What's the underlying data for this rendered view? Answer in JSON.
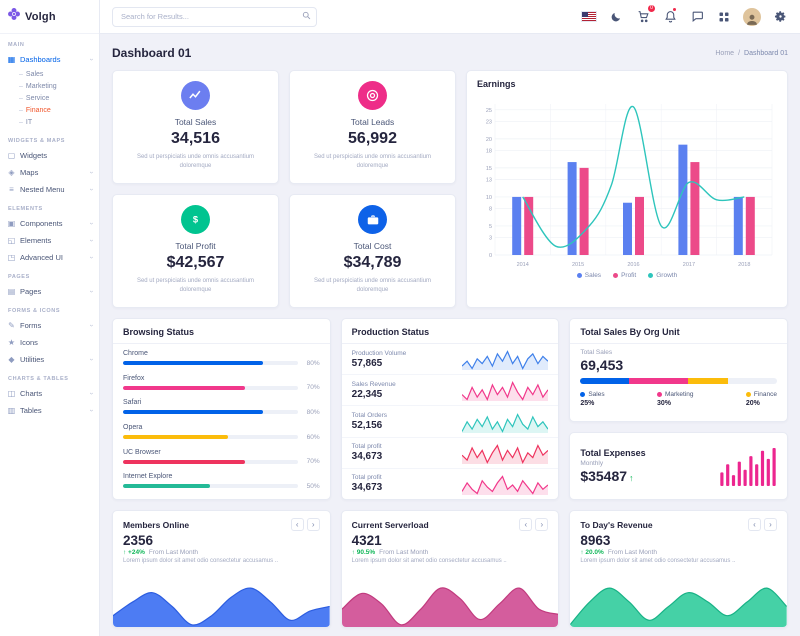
{
  "brand": {
    "name": "Volgh"
  },
  "header": {
    "search": {
      "placeholder": "Search for Results..."
    },
    "cart_badge": "0",
    "icons": [
      "us-flag-icon",
      "moon-icon",
      "cart-icon",
      "bell-icon",
      "chat-icon",
      "grid-icon",
      "avatar",
      "gear-icon"
    ]
  },
  "icon_glyphs": {
    "dashboard-icon": "▦",
    "widgets-icon": "▢",
    "maps-icon": "◈",
    "nested-menu-icon": "≡",
    "components-icon": "▣",
    "elements-icon": "◱",
    "advanced-ui-icon": "◳",
    "pages-icon": "▤",
    "forms-icon": "✎",
    "icons-icon": "★",
    "utilities-icon": "◆",
    "charts-icon": "◫",
    "tables-icon": "▥"
  },
  "sidebar": {
    "sections": [
      {
        "label": "MAIN",
        "items": [
          {
            "label": "Dashboards",
            "icon": "dashboard-icon",
            "chev": true,
            "active": true,
            "expanded": true,
            "children": [
              {
                "label": "Sales"
              },
              {
                "label": "Marketing"
              },
              {
                "label": "Service"
              },
              {
                "label": "Finance",
                "active": true
              },
              {
                "label": "IT"
              }
            ]
          }
        ]
      },
      {
        "label": "WIDGETS & MAPS",
        "items": [
          {
            "label": "Widgets",
            "icon": "widgets-icon"
          },
          {
            "label": "Maps",
            "icon": "maps-icon",
            "chev": true
          },
          {
            "label": "Nested Menu",
            "icon": "nested-menu-icon",
            "chev": true
          }
        ]
      },
      {
        "label": "ELEMENTS",
        "items": [
          {
            "label": "Components",
            "icon": "components-icon",
            "chev": true
          },
          {
            "label": "Elements",
            "icon": "elements-icon",
            "chev": true
          },
          {
            "label": "Advanced UI",
            "icon": "advanced-ui-icon",
            "chev": true
          }
        ]
      },
      {
        "label": "PAGES",
        "items": [
          {
            "label": "Pages",
            "icon": "pages-icon",
            "chev": true
          }
        ]
      },
      {
        "label": "FORMS & ICONS",
        "items": [
          {
            "label": "Forms",
            "icon": "forms-icon",
            "chev": true
          },
          {
            "label": "Icons",
            "icon": "icons-icon"
          },
          {
            "label": "Utilities",
            "icon": "utilities-icon",
            "chev": true
          }
        ]
      },
      {
        "label": "CHARTS & TABLES",
        "items": [
          {
            "label": "Charts",
            "icon": "charts-icon",
            "chev": true
          },
          {
            "label": "Tables",
            "icon": "tables-icon",
            "chev": true
          }
        ]
      }
    ]
  },
  "page": {
    "title": "Dashboard 01",
    "breadcrumb": {
      "home": "Home",
      "sep": "/",
      "current": "Dashboard 01"
    }
  },
  "stat_cards": [
    {
      "title": "Total Sales",
      "value": "34,516",
      "desc": "Sed ut perspiciatis unde omnis accusantium doloremque",
      "color": "#6c7ef0",
      "icon": "trend-icon"
    },
    {
      "title": "Total Leads",
      "value": "56,992",
      "desc": "Sed ut perspiciatis unde omnis accusantium doloremque",
      "color": "#ee2d88",
      "icon": "target-icon"
    },
    {
      "title": "Total Profit",
      "value": "$42,567",
      "desc": "Sed ut perspiciatis unde omnis accusantium doloremque",
      "color": "#01c490",
      "icon": "dollar-icon"
    },
    {
      "title": "Total Cost",
      "value": "$34,789",
      "desc": "Sed ut perspiciatis unde omnis accusantium doloremque",
      "color": "#0e62e8",
      "icon": "briefcase-icon"
    }
  ],
  "chart_data": {
    "earnings": {
      "type": "bar+line",
      "title": "Earnings",
      "categories": [
        "2014",
        "2015",
        "2016",
        "2017",
        "2018"
      ],
      "series": [
        {
          "name": "Sales",
          "type": "bar",
          "color": "#5b80f0",
          "values": [
            10,
            16,
            9,
            19,
            10
          ]
        },
        {
          "name": "Profit",
          "type": "bar",
          "color": "#ec4a89",
          "values": [
            10,
            15,
            10,
            16,
            10
          ]
        },
        {
          "name": "Growth",
          "type": "line",
          "color": "#2ec5bc",
          "x": [
            0,
            0.6,
            1.2,
            1.6,
            2,
            2.5,
            3,
            3.5,
            4
          ],
          "values": [
            10,
            1.5,
            5,
            12,
            25.5,
            5,
            12.5,
            9.5,
            10
          ]
        }
      ],
      "yticks": [
        0,
        3,
        5,
        8,
        10,
        13,
        15,
        18,
        20,
        23,
        25
      ],
      "ymax": 26,
      "xlabel": "",
      "ylabel": "",
      "legend_position": "bottom",
      "grid": true
    },
    "expenses_bars": [
      5,
      8,
      4,
      9,
      6,
      11,
      8,
      13,
      10,
      14
    ]
  },
  "browsing": {
    "title": "Browsing Status",
    "rows": [
      {
        "label": "Chrome",
        "pct": 80,
        "color": "#0162e8"
      },
      {
        "label": "Firefox",
        "pct": 70,
        "color": "#f1388b"
      },
      {
        "label": "Safari",
        "pct": 80,
        "color": "#0162e8"
      },
      {
        "label": "Opera",
        "pct": 60,
        "color": "#fbbc0b"
      },
      {
        "label": "UC Browser",
        "pct": 70,
        "color": "#ee335e"
      },
      {
        "label": "Internet Explore",
        "pct": 50,
        "color": "#24ba97"
      }
    ]
  },
  "production": {
    "title": "Production Status",
    "rows": [
      {
        "label": "Production Volume",
        "value": "57,865",
        "color": "#3f80ea",
        "spark": [
          5,
          7,
          4,
          8,
          6,
          9,
          5,
          10,
          7,
          11,
          6,
          9,
          4,
          8,
          10,
          6,
          9,
          7
        ]
      },
      {
        "label": "Sales Revenue",
        "value": "22,345",
        "color": "#f1388b",
        "spark": [
          6,
          4,
          9,
          5,
          8,
          4,
          10,
          6,
          9,
          5,
          11,
          7,
          4,
          9,
          6,
          10,
          5,
          8
        ]
      },
      {
        "label": "Total Orders",
        "value": "52,156",
        "color": "#2ec5bc",
        "spark": [
          4,
          8,
          5,
          9,
          6,
          10,
          5,
          8,
          4,
          9,
          6,
          11,
          7,
          5,
          10,
          6,
          8,
          5
        ]
      },
      {
        "label": "Total profit",
        "value": "34,673",
        "color": "#ee335e",
        "spark": [
          7,
          5,
          10,
          6,
          9,
          4,
          8,
          11,
          5,
          9,
          6,
          10,
          4,
          8,
          6,
          11,
          7,
          9
        ]
      },
      {
        "label": "Total profit",
        "value": "34,673",
        "color": "#f1388b",
        "spark": [
          5,
          9,
          6,
          4,
          10,
          7,
          5,
          9,
          12,
          6,
          8,
          5,
          10,
          7,
          4,
          9,
          6,
          8
        ]
      }
    ]
  },
  "org": {
    "title": "Total Sales By Org Unit",
    "total_label": "Total Sales",
    "total_value": "69,453",
    "segments": [
      {
        "name": "Sales",
        "pct": 25,
        "color": "#0162e8"
      },
      {
        "name": "Marketing",
        "pct": 30,
        "color": "#f1388b"
      },
      {
        "name": "Finance",
        "pct": 20,
        "color": "#fbbc0b"
      }
    ],
    "track_color": "#edf0f7"
  },
  "expenses": {
    "title": "Total Expenses",
    "period": "Monthly",
    "value": "$35487",
    "arrow": "↑",
    "bar_color": "#ec268f"
  },
  "bottom_cards": [
    {
      "title": "Members Online",
      "value": "2356",
      "delta": "+24%",
      "delta_note": "From Last Month",
      "desc": "Lorem ipsum dolor sit amet odio consectetur accusamus ..",
      "stroke": "#2c5de0",
      "fill": "#4d7cf3",
      "wave": [
        14,
        20,
        24,
        18,
        10,
        14,
        22,
        26,
        20,
        12,
        16,
        18
      ]
    },
    {
      "title": "Current Serverload",
      "value": "4321",
      "delta": "90.5%",
      "delta_note": "From Last Month",
      "desc": "Lorem ipsum dolor sit amet odio consectetur accusamus ..",
      "stroke": "#c13b7e",
      "fill": "#d45d9d",
      "wave": [
        16,
        22,
        18,
        10,
        16,
        24,
        20,
        12,
        18,
        24,
        16,
        14
      ]
    },
    {
      "title": "To Day's Revenue",
      "value": "8963",
      "delta": "20.0%",
      "delta_note": "From Last Month",
      "desc": "Lorem ipsum dolor sit amet odio consectetur accusamus ..",
      "stroke": "#18b286",
      "fill": "#45d1a6",
      "wave": [
        10,
        20,
        26,
        20,
        12,
        18,
        24,
        20,
        14,
        20,
        26,
        18
      ]
    }
  ],
  "colors": {
    "primary": "#0162e8",
    "pink": "#f1388b",
    "teal": "#2ec5bc",
    "yellow": "#fbbc0b",
    "red": "#ee335e",
    "success": "#10b759",
    "active_subitem": "#f0562c",
    "brand_purple": "#7c59e6"
  }
}
